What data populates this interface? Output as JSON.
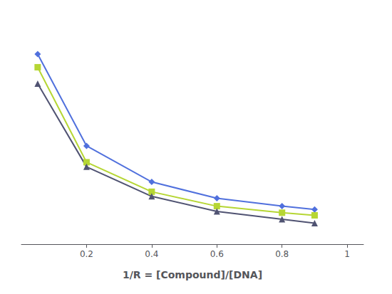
{
  "chart_data": {
    "type": "line",
    "x_label": "1/R = [Compound]/[DNA]",
    "x": [
      0.05,
      0.2,
      0.4,
      0.6,
      0.8,
      0.9
    ],
    "series": [
      {
        "values": [
          3.5,
          2.1,
          1.55,
          1.3,
          1.18,
          1.13
        ],
        "marker": "diamond"
      },
      {
        "values": [
          3.3,
          1.85,
          1.4,
          1.18,
          1.08,
          1.04
        ],
        "marker": "square"
      },
      {
        "values": [
          3.05,
          1.78,
          1.33,
          1.1,
          0.98,
          0.92
        ],
        "marker": "triangle"
      }
    ],
    "xlim": [
      0.0,
      1.05
    ],
    "xticks": [
      0.2,
      0.4,
      0.6,
      0.8,
      1
    ],
    "ylim": [
      0.6,
      4.0
    ],
    "grid": false,
    "tick_labels": "x"
  }
}
